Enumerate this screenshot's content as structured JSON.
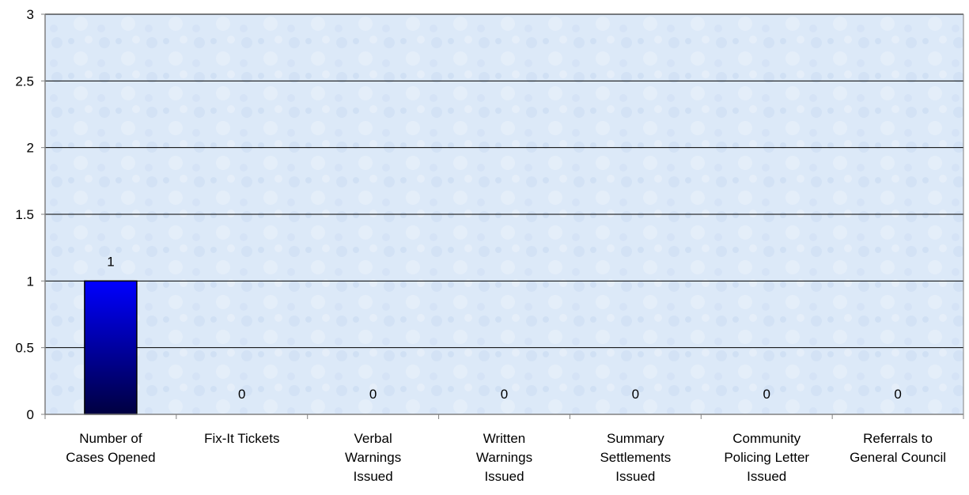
{
  "chart_data": {
    "type": "bar",
    "categories": [
      [
        "Number of",
        "Cases Opened"
      ],
      [
        "Fix-It Tickets"
      ],
      [
        "Verbal",
        "Warnings",
        "Issued"
      ],
      [
        "Written",
        "Warnings",
        "Issued"
      ],
      [
        "Summary",
        "Settlements",
        "Issued"
      ],
      [
        "Community",
        "Policing Letter",
        "Issued"
      ],
      [
        "Referrals to",
        "General Council"
      ]
    ],
    "values": [
      1,
      0,
      0,
      0,
      0,
      0,
      0
    ],
    "data_labels": [
      "1",
      "0",
      "0",
      "0",
      "0",
      "0",
      "0"
    ],
    "ylim": [
      0,
      3
    ],
    "yticks": [
      0,
      0.5,
      1,
      1.5,
      2,
      2.5,
      3
    ],
    "ytick_labels": [
      "0",
      "0.5",
      "1",
      "1.5",
      "2",
      "2.5",
      "3"
    ],
    "grid": true,
    "legend": "none",
    "title": "",
    "xlabel": "",
    "ylabel": ""
  },
  "colors": {
    "plot_background": "#dce9f8",
    "bar_top": "#0000ff",
    "bar_bottom": "#000040",
    "gridline": "#000000",
    "axis": "#808080"
  }
}
